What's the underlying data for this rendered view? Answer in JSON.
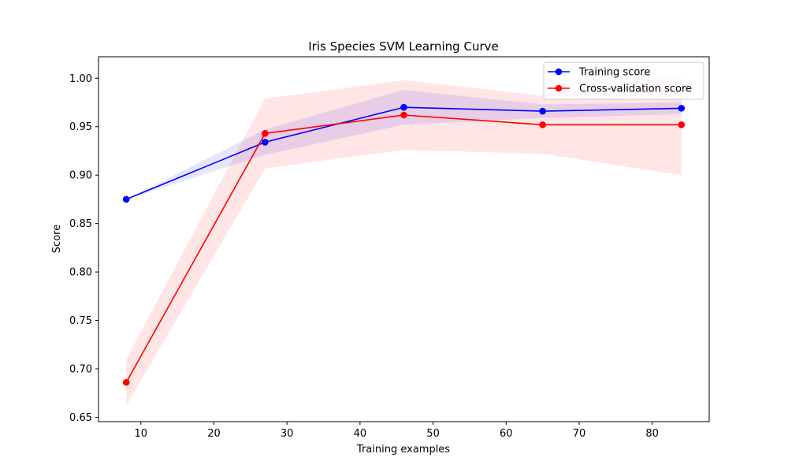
{
  "chart_data": {
    "type": "line",
    "title": "Iris Species SVM Learning Curve",
    "xlabel": "Training examples",
    "ylabel": "Score",
    "xlim": [
      4.2,
      87.8
    ],
    "ylim": [
      0.6455,
      1.0222
    ],
    "xticks": [
      10,
      20,
      30,
      40,
      50,
      60,
      70,
      80
    ],
    "yticks": [
      0.65,
      0.7,
      0.75,
      0.8,
      0.85,
      0.9,
      0.95,
      1.0
    ],
    "xtick_labels": [
      "10",
      "20",
      "30",
      "40",
      "50",
      "60",
      "70",
      "80"
    ],
    "ytick_labels": [
      "0.65",
      "0.70",
      "0.75",
      "0.80",
      "0.85",
      "0.90",
      "0.95",
      "1.00"
    ],
    "grid": false,
    "legend_position": "top-right",
    "x": [
      8,
      27,
      46,
      65,
      84
    ],
    "series": [
      {
        "name": "Training score",
        "color": "#0000ff",
        "marker": "circle",
        "values": [
          0.875,
          0.934,
          0.97,
          0.966,
          0.969
        ],
        "band_lower": [
          0.875,
          0.921,
          0.952,
          0.959,
          0.963
        ],
        "band_upper": [
          0.875,
          0.947,
          0.988,
          0.973,
          0.975
        ]
      },
      {
        "name": "Cross-validation score",
        "color": "#ff0000",
        "marker": "circle",
        "values": [
          0.686,
          0.943,
          0.962,
          0.952,
          0.952
        ],
        "band_lower": [
          0.662,
          0.907,
          0.926,
          0.922,
          0.9
        ],
        "band_upper": [
          0.71,
          0.979,
          0.998,
          0.982,
          1.005
        ]
      }
    ]
  }
}
